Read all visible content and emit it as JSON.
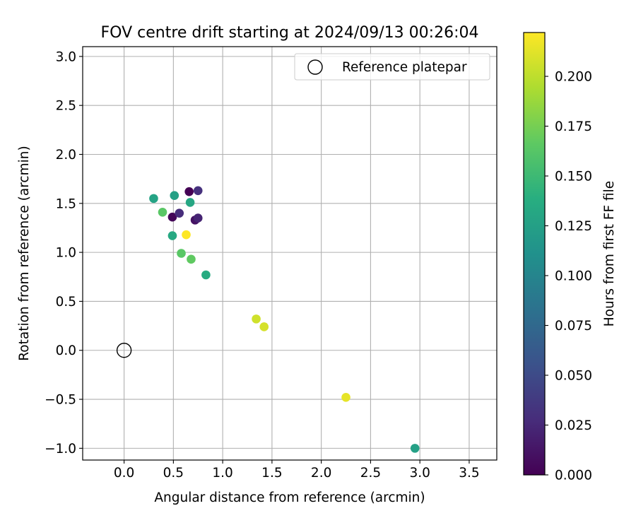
{
  "chart_data": {
    "type": "scatter",
    "title": "FOV centre drift starting at 2024/09/13 00:26:04",
    "xlabel": "Angular distance from reference (arcmin)",
    "ylabel": "Rotation from reference (arcmin)",
    "xlim": [
      -0.42,
      3.78
    ],
    "ylim": [
      -1.12,
      3.1
    ],
    "xticks": [
      "0.0",
      "0.5",
      "1.0",
      "1.5",
      "2.0",
      "2.5",
      "3.0",
      "3.5"
    ],
    "xtick_values": [
      0,
      0.5,
      1.0,
      1.5,
      2.0,
      2.5,
      3.0,
      3.5
    ],
    "yticks": [
      "−1.0",
      "−0.5",
      "0.0",
      "0.5",
      "1.0",
      "1.5",
      "2.0",
      "2.5",
      "3.0"
    ],
    "ytick_values": [
      -1.0,
      -0.5,
      0,
      0.5,
      1.0,
      1.5,
      2.0,
      2.5,
      3.0
    ],
    "grid": true,
    "legend": {
      "position": "top-right",
      "entries": [
        "Reference platepar"
      ]
    },
    "reference_point": {
      "x": 0.0,
      "y": 0.0
    },
    "colormap": "viridis",
    "colorbar": {
      "label": "Hours from first FF file",
      "range": [
        0.0,
        0.222
      ],
      "ticks": [
        "0.000",
        "0.025",
        "0.050",
        "0.075",
        "0.100",
        "0.125",
        "0.150",
        "0.175",
        "0.200"
      ],
      "tick_values": [
        0,
        0.025,
        0.05,
        0.075,
        0.1,
        0.125,
        0.15,
        0.175,
        0.2
      ]
    },
    "points": [
      {
        "x": 0.66,
        "y": 1.62,
        "hours": 0.0
      },
      {
        "x": 0.49,
        "y": 1.36,
        "hours": 0.003
      },
      {
        "x": 0.72,
        "y": 1.33,
        "hours": 0.011
      },
      {
        "x": 0.75,
        "y": 1.35,
        "hours": 0.022
      },
      {
        "x": 0.56,
        "y": 1.4,
        "hours": 0.028
      },
      {
        "x": 0.75,
        "y": 1.63,
        "hours": 0.031
      },
      {
        "x": 0.51,
        "y": 1.58,
        "hours": 0.125
      },
      {
        "x": 0.3,
        "y": 1.55,
        "hours": 0.128
      },
      {
        "x": 0.67,
        "y": 1.51,
        "hours": 0.131
      },
      {
        "x": 0.49,
        "y": 1.17,
        "hours": 0.133
      },
      {
        "x": 0.83,
        "y": 0.77,
        "hours": 0.136
      },
      {
        "x": 2.95,
        "y": -1.0,
        "hours": 0.125
      },
      {
        "x": 0.39,
        "y": 1.41,
        "hours": 0.164
      },
      {
        "x": 0.58,
        "y": 0.99,
        "hours": 0.164
      },
      {
        "x": 0.68,
        "y": 0.93,
        "hours": 0.167
      },
      {
        "x": 1.34,
        "y": 0.32,
        "hours": 0.206
      },
      {
        "x": 1.42,
        "y": 0.24,
        "hours": 0.208
      },
      {
        "x": 2.25,
        "y": -0.48,
        "hours": 0.214
      },
      {
        "x": 0.63,
        "y": 1.18,
        "hours": 0.222
      }
    ]
  }
}
